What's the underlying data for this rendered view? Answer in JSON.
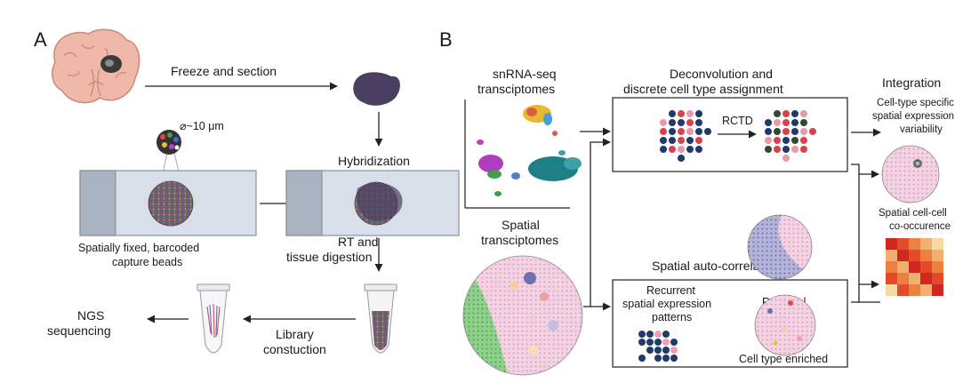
{
  "panels": {
    "a": "A",
    "b": "B"
  },
  "panel_a": {
    "freeze_section": "Freeze and section",
    "bead_size": "⌀~10 μm",
    "hybridization": "Hybridization",
    "beads_line1": "Spatially fixed, barcoded",
    "beads_line2": "capture beads",
    "rt_line1": "RT and",
    "rt_line2": "tissue digestion",
    "ngs_line1": "NGS",
    "ngs_line2": "sequencing",
    "lib_line1": "Library",
    "lib_line2": "constuction"
  },
  "panel_b": {
    "snrna_line1": "snRNA-seq",
    "snrna_line2": "transciptomes",
    "spatial_line1": "Spatial",
    "spatial_line2": "transciptomes",
    "deconv_line1": "Deconvolution and",
    "deconv_line2": "discrete cell type assignment",
    "rctd": "RCTD",
    "autocorr_title": "Spatial auto-correlation",
    "recurrent_line1": "Recurrent",
    "recurrent_line2": "spatial expression",
    "recurrent_line3": "patterns",
    "regional": "Regional",
    "enriched": "Cell type enriched",
    "integration": "Integration",
    "variability_line1": "Cell-type specific",
    "variability_line2": "spatial expression",
    "variability_line3": "variability",
    "cooc_line1": "Spatial cell-cell",
    "cooc_line2": "co-occurence"
  },
  "colors": {
    "navy": "#1f3a6b",
    "red": "#d8434b",
    "pink": "#f0c8da",
    "green": "#6db86a",
    "teal": "#1f7f86",
    "tissue": "#4a3f63",
    "slide": "#d9dfe8"
  }
}
